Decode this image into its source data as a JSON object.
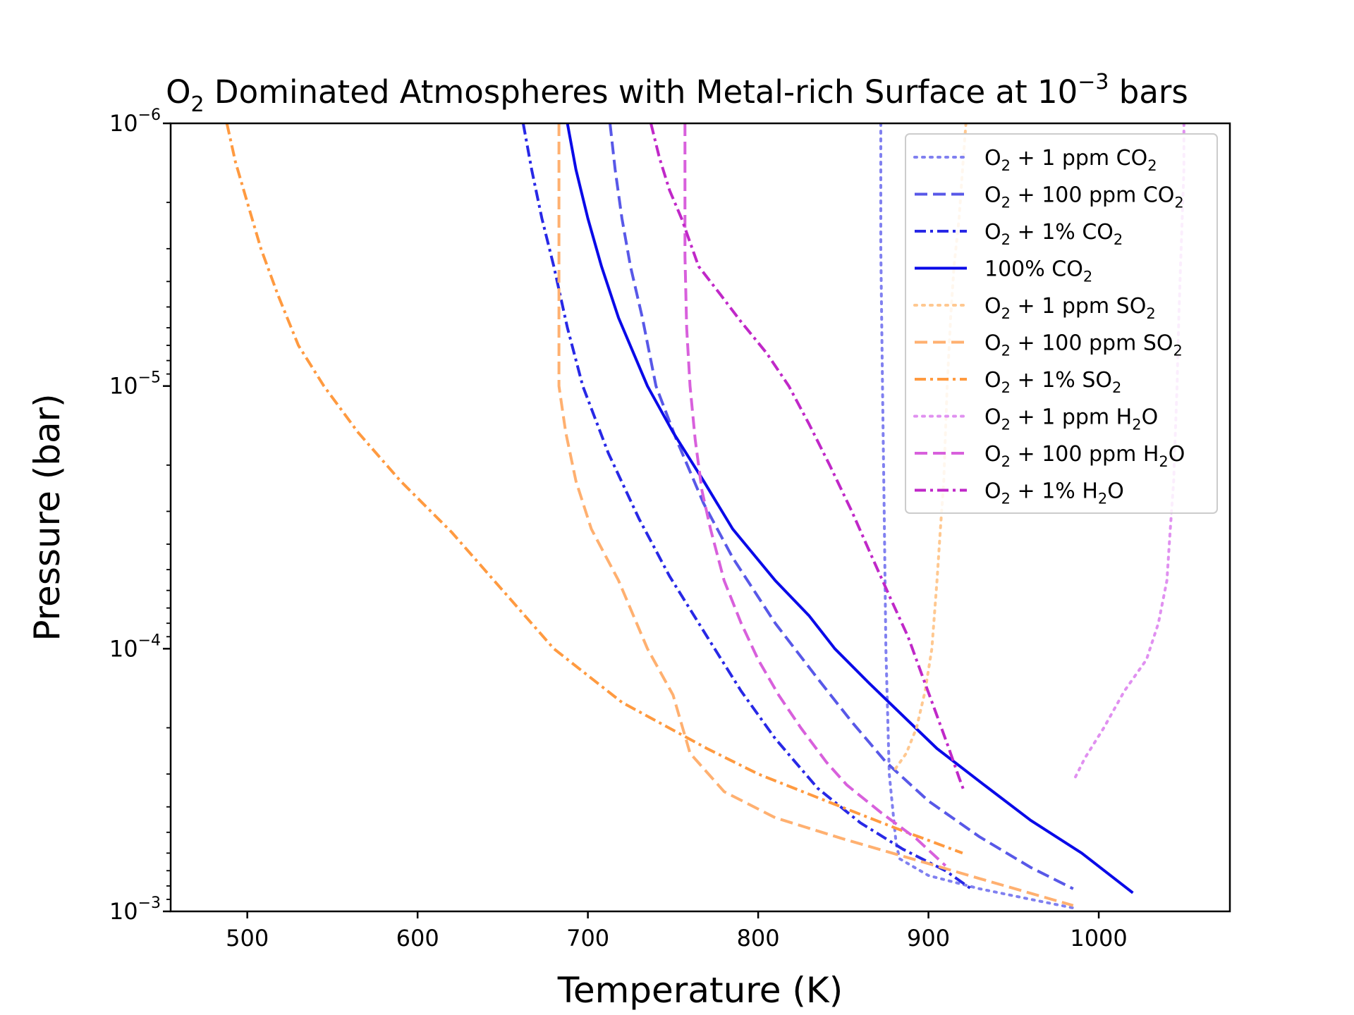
{
  "chart_data": {
    "type": "line",
    "title": {
      "pre": "O",
      "sub": "2",
      "mid": " Dominated Atmospheres with Metal-rich Surface at 10",
      "sup": "−3",
      "post": " bars"
    },
    "xlabel": "Temperature (K)",
    "ylabel": "Pressure (bar)",
    "xlim": [
      455,
      1077
    ],
    "ylim": [
      0.001,
      1e-06
    ],
    "y_scale": "log",
    "y_inverted": true,
    "grid": false,
    "legend_position": "upper right",
    "x_ticks": [
      "500",
      "600",
      "700",
      "800",
      "900",
      "1000"
    ],
    "x_tick_values": [
      500,
      600,
      700,
      800,
      900,
      1000
    ],
    "y_ticks": [
      {
        "value": 1e-06,
        "base": "10",
        "exp": "−6"
      },
      {
        "value": 1e-05,
        "base": "10",
        "exp": "−5"
      },
      {
        "value": 0.0001,
        "base": "10",
        "exp": "−4"
      },
      {
        "value": 0.001,
        "base": "10",
        "exp": "−3"
      }
    ],
    "series": [
      {
        "id": "co2-1ppm",
        "legend": {
          "pre": "O",
          "sub": "2",
          "mid": " + 1 ppm CO",
          "sub2": "2"
        },
        "color": "#8080f0",
        "style": "dotted",
        "points": [
          [
            872,
            1e-06
          ],
          [
            872,
            3e-06
          ],
          [
            873,
            1e-05
          ],
          [
            874,
            3e-05
          ],
          [
            875,
            0.0001
          ],
          [
            877,
            0.0003
          ],
          [
            881,
            0.00055
          ],
          [
            883,
            0.00063
          ],
          [
            900,
            0.00073
          ],
          [
            930,
            0.00082
          ],
          [
            960,
            0.0009
          ],
          [
            985,
            0.00097
          ]
        ]
      },
      {
        "id": "co2-100ppm",
        "legend": {
          "pre": "O",
          "sub": "2",
          "mid": " + 100 ppm CO",
          "sub2": "2"
        },
        "color": "#5858e8",
        "style": "dashed",
        "points": [
          [
            713,
            1e-06
          ],
          [
            716,
            1.5e-06
          ],
          [
            720,
            2.3e-06
          ],
          [
            725,
            3.5e-06
          ],
          [
            732,
            5.5e-06
          ],
          [
            740,
            1e-05
          ],
          [
            752,
            1.6e-05
          ],
          [
            768,
            2.8e-05
          ],
          [
            785,
            4.5e-05
          ],
          [
            810,
            8e-05
          ],
          [
            835,
            0.00013
          ],
          [
            855,
            0.00019
          ],
          [
            875,
            0.00027
          ],
          [
            900,
            0.00038
          ],
          [
            930,
            0.00052
          ],
          [
            960,
            0.00068
          ],
          [
            985,
            0.00082
          ]
        ]
      },
      {
        "id": "co2-1pct",
        "legend": {
          "pre": "O",
          "sub": "2",
          "mid": " + 1% CO",
          "sub2": "2"
        },
        "color": "#2828e6",
        "style": "dashdot",
        "points": [
          [
            662,
            1e-06
          ],
          [
            667,
            1.5e-06
          ],
          [
            673,
            2.3e-06
          ],
          [
            680,
            3.5e-06
          ],
          [
            688,
            6e-06
          ],
          [
            697,
            1e-05
          ],
          [
            712,
            1.8e-05
          ],
          [
            730,
            3.2e-05
          ],
          [
            748,
            5.3e-05
          ],
          [
            770,
            9e-05
          ],
          [
            790,
            0.000145
          ],
          [
            810,
            0.00022
          ],
          [
            835,
            0.00034
          ],
          [
            860,
            0.00046
          ],
          [
            885,
            0.00058
          ],
          [
            910,
            0.0007
          ],
          [
            925,
            0.00082
          ]
        ]
      },
      {
        "id": "co2-100pct",
        "legend": {
          "pre": "100% CO",
          "sub": "2",
          "mid": "",
          "sub2": ""
        },
        "color": "#0a0ae8",
        "style": "solid",
        "points": [
          [
            688,
            1e-06
          ],
          [
            693,
            1.5e-06
          ],
          [
            700,
            2.3e-06
          ],
          [
            708,
            3.5e-06
          ],
          [
            718,
            5.5e-06
          ],
          [
            735,
            1e-05
          ],
          [
            750,
            1.5e-05
          ],
          [
            768,
            2.3e-05
          ],
          [
            785,
            3.5e-05
          ],
          [
            810,
            5.5e-05
          ],
          [
            830,
            7.5e-05
          ],
          [
            845,
            0.0001
          ],
          [
            865,
            0.000135
          ],
          [
            885,
            0.00018
          ],
          [
            905,
            0.00024
          ],
          [
            930,
            0.00032
          ],
          [
            960,
            0.00045
          ],
          [
            990,
            0.0006
          ],
          [
            1020,
            0.00085
          ]
        ]
      },
      {
        "id": "so2-1ppm",
        "legend": {
          "pre": "O",
          "sub": "2",
          "mid": " + 1 ppm SO",
          "sub2": "2"
        },
        "color": "#ffc890",
        "style": "dotted",
        "points": [
          [
            922,
            1e-06
          ],
          [
            920,
            1.5e-06
          ],
          [
            918,
            2.3e-06
          ],
          [
            915,
            3.5e-06
          ],
          [
            913,
            5.5e-06
          ],
          [
            911,
            1e-05
          ],
          [
            910,
            1.5e-05
          ],
          [
            909,
            2.3e-05
          ],
          [
            907,
            3.5e-05
          ],
          [
            905,
            5.5e-05
          ],
          [
            902,
            0.0001
          ],
          [
            898,
            0.000145
          ],
          [
            893,
            0.0002
          ],
          [
            887,
            0.00025
          ],
          [
            880,
            0.00029
          ]
        ]
      },
      {
        "id": "so2-100ppm",
        "legend": {
          "pre": "O",
          "sub": "2",
          "mid": " + 100 ppm SO",
          "sub2": "2"
        },
        "color": "#ffb070",
        "style": "dashed",
        "points": [
          [
            683,
            1e-06
          ],
          [
            683,
            2e-06
          ],
          [
            683,
            5e-06
          ],
          [
            683,
            1e-05
          ],
          [
            687,
            1.5e-05
          ],
          [
            693,
            2.3e-05
          ],
          [
            702,
            3.5e-05
          ],
          [
            718,
            5.5e-05
          ],
          [
            735,
            0.0001
          ],
          [
            750,
            0.00015
          ],
          [
            760,
            0.00025
          ],
          [
            780,
            0.00035
          ],
          [
            810,
            0.00044
          ],
          [
            850,
            0.00053
          ],
          [
            890,
            0.00063
          ],
          [
            930,
            0.00075
          ],
          [
            985,
            0.00095
          ]
        ]
      },
      {
        "id": "so2-1pct",
        "legend": {
          "pre": "O",
          "sub": "2",
          "mid": " + 1% SO",
          "sub2": "2"
        },
        "color": "#ff9a40",
        "style": "dashdot",
        "points": [
          [
            488,
            1e-06
          ],
          [
            493,
            1.4e-06
          ],
          [
            500,
            2e-06
          ],
          [
            508,
            3e-06
          ],
          [
            518,
            4.5e-06
          ],
          [
            530,
            7e-06
          ],
          [
            545,
            1e-05
          ],
          [
            565,
            1.5e-05
          ],
          [
            590,
            2.3e-05
          ],
          [
            620,
            3.6e-05
          ],
          [
            650,
            6e-05
          ],
          [
            680,
            0.0001
          ],
          [
            720,
            0.00016
          ],
          [
            770,
            0.00024
          ],
          [
            800,
            0.0003
          ],
          [
            840,
            0.00038
          ],
          [
            880,
            0.00048
          ],
          [
            920,
            0.0006
          ]
        ]
      },
      {
        "id": "h2o-1ppm",
        "legend": {
          "pre": "O",
          "sub": "2",
          "mid": " + 1 ppm H",
          "sub2": "2",
          "post": "O"
        },
        "color": "#e090f0",
        "style": "dotted",
        "points": [
          [
            1050,
            1e-06
          ],
          [
            1050,
            1.5e-06
          ],
          [
            1049,
            2.3e-06
          ],
          [
            1048,
            3.5e-06
          ],
          [
            1047,
            5.5e-06
          ],
          [
            1046,
            1e-05
          ],
          [
            1045,
            1.5e-05
          ],
          [
            1044,
            2.3e-05
          ],
          [
            1042,
            3.5e-05
          ],
          [
            1040,
            5.5e-05
          ],
          [
            1035,
            8e-05
          ],
          [
            1028,
            0.00011
          ],
          [
            1015,
            0.000145
          ],
          [
            1003,
            0.0002
          ],
          [
            992,
            0.00026
          ],
          [
            985,
            0.00032
          ]
        ]
      },
      {
        "id": "h2o-100ppm",
        "legend": {
          "pre": "O",
          "sub": "2",
          "mid": " + 100 ppm H",
          "sub2": "2",
          "post": "O"
        },
        "color": "#d860dc",
        "style": "dashed",
        "points": [
          [
            757,
            1e-06
          ],
          [
            757,
            2e-06
          ],
          [
            757,
            3.2e-06
          ],
          [
            758,
            6e-06
          ],
          [
            760,
            1e-05
          ],
          [
            763,
            1.6e-05
          ],
          [
            767,
            2.5e-05
          ],
          [
            772,
            3.5e-05
          ],
          [
            780,
            5.5e-05
          ],
          [
            790,
            8e-05
          ],
          [
            800,
            0.00011
          ],
          [
            812,
            0.00015
          ],
          [
            825,
            0.0002
          ],
          [
            840,
            0.00027
          ],
          [
            852,
            0.00033
          ],
          [
            872,
            0.00042
          ],
          [
            893,
            0.00053
          ],
          [
            910,
            0.00067
          ]
        ]
      },
      {
        "id": "h2o-1pct",
        "legend": {
          "pre": "O",
          "sub": "2",
          "mid": " + 1% H",
          "sub2": "2",
          "post": "O"
        },
        "color": "#c028c8",
        "style": "dashdot",
        "points": [
          [
            737,
            1e-06
          ],
          [
            742,
            1.35e-06
          ],
          [
            748,
            1.8e-06
          ],
          [
            755,
            2.3e-06
          ],
          [
            765,
            3.5e-06
          ],
          [
            778,
            4.5e-06
          ],
          [
            790,
            5.7e-06
          ],
          [
            805,
            7.5e-06
          ],
          [
            818,
            1e-05
          ],
          [
            830,
            1.4e-05
          ],
          [
            842,
            2e-05
          ],
          [
            855,
            3e-05
          ],
          [
            867,
            4.5e-05
          ],
          [
            878,
            6.5e-05
          ],
          [
            888,
            9e-05
          ],
          [
            897,
            0.00013
          ],
          [
            905,
            0.00018
          ],
          [
            912,
            0.00024
          ],
          [
            918,
            0.00031
          ],
          [
            921,
            0.00035
          ]
        ]
      }
    ]
  }
}
